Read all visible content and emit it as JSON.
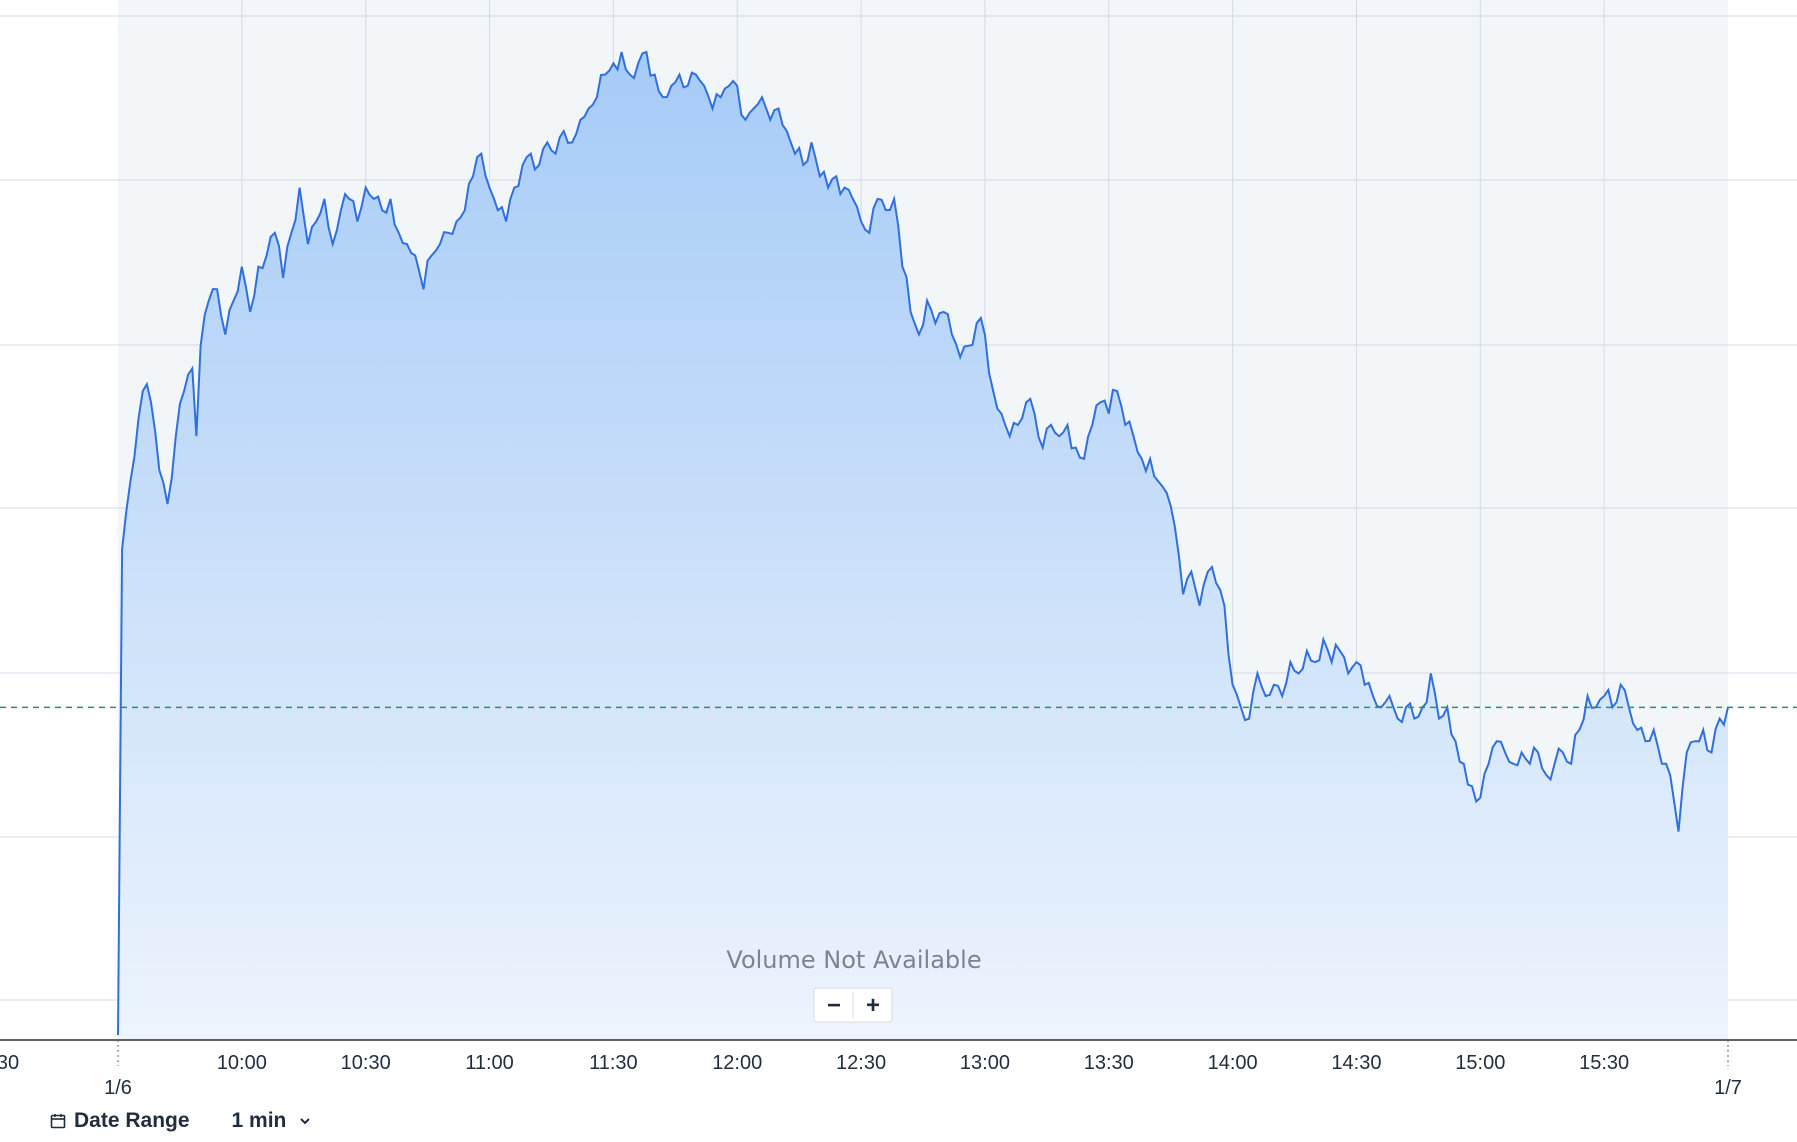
{
  "chart_data": {
    "type": "area",
    "overlay_text": "Volume Not Available",
    "zoom_out_label": "−",
    "zoom_in_label": "+",
    "x_tick_labels": [
      "30",
      "10:00",
      "10:30",
      "11:00",
      "11:30",
      "12:00",
      "12:30",
      "13:00",
      "13:30",
      "14:00",
      "14:30",
      "15:00",
      "15:30"
    ],
    "date_labels": [
      "1/6",
      "1/7"
    ],
    "grid": true,
    "reference_line": "dashed",
    "colors": {
      "line": "#2f6fde",
      "fill_top": "#a6cbf7",
      "fill_bottom": "#edf4fd",
      "reference": "#2e8b7a",
      "grid": "#d4dbe4"
    },
    "anchors": [
      [
        "09:30",
        10
      ],
      [
        "09:31",
        53
      ],
      [
        "09:33",
        59
      ],
      [
        "09:36",
        67
      ],
      [
        "09:38",
        66
      ],
      [
        "09:40",
        60
      ],
      [
        "09:42",
        57
      ],
      [
        "09:44",
        63
      ],
      [
        "09:46",
        67
      ],
      [
        "09:48",
        69
      ],
      [
        "09:49",
        63
      ],
      [
        "09:50",
        71
      ],
      [
        "09:52",
        75
      ],
      [
        "09:54",
        76
      ],
      [
        "09:56",
        72
      ],
      [
        "09:58",
        75
      ],
      [
        "10:00",
        78
      ],
      [
        "10:02",
        74
      ],
      [
        "10:04",
        78
      ],
      [
        "10:06",
        79
      ],
      [
        "10:08",
        81
      ],
      [
        "10:10",
        77
      ],
      [
        "10:12",
        81
      ],
      [
        "10:14",
        85
      ],
      [
        "10:16",
        80
      ],
      [
        "10:18",
        82
      ],
      [
        "10:20",
        84
      ],
      [
        "10:22",
        80
      ],
      [
        "10:24",
        83
      ],
      [
        "10:26",
        84
      ],
      [
        "10:28",
        82
      ],
      [
        "10:30",
        85
      ],
      [
        "10:32",
        84
      ],
      [
        "10:34",
        83
      ],
      [
        "10:36",
        84
      ],
      [
        "10:38",
        81
      ],
      [
        "10:40",
        80
      ],
      [
        "10:42",
        79
      ],
      [
        "10:44",
        76
      ],
      [
        "10:46",
        79
      ],
      [
        "10:48",
        80
      ],
      [
        "10:50",
        81
      ],
      [
        "10:52",
        82
      ],
      [
        "10:54",
        83
      ],
      [
        "10:56",
        86
      ],
      [
        "10:58",
        88
      ],
      [
        "11:00",
        85
      ],
      [
        "11:02",
        83
      ],
      [
        "11:04",
        82
      ],
      [
        "11:06",
        85
      ],
      [
        "11:08",
        87
      ],
      [
        "11:10",
        88
      ],
      [
        "11:12",
        87
      ],
      [
        "11:14",
        89
      ],
      [
        "11:16",
        88
      ],
      [
        "11:18",
        90
      ],
      [
        "11:20",
        89
      ],
      [
        "11:22",
        91
      ],
      [
        "11:24",
        92
      ],
      [
        "11:26",
        93
      ],
      [
        "11:28",
        95
      ],
      [
        "11:30",
        96
      ],
      [
        "11:32",
        97
      ],
      [
        "11:34",
        95
      ],
      [
        "11:36",
        96
      ],
      [
        "11:38",
        97
      ],
      [
        "11:40",
        95
      ],
      [
        "11:42",
        93
      ],
      [
        "11:44",
        94
      ],
      [
        "11:46",
        95
      ],
      [
        "11:48",
        94
      ],
      [
        "11:50",
        95
      ],
      [
        "11:52",
        94
      ],
      [
        "11:54",
        92
      ],
      [
        "11:56",
        93
      ],
      [
        "11:58",
        94
      ],
      [
        "12:00",
        94
      ],
      [
        "12:02",
        91
      ],
      [
        "12:04",
        92
      ],
      [
        "12:06",
        93
      ],
      [
        "12:08",
        91
      ],
      [
        "12:10",
        92
      ],
      [
        "12:12",
        90
      ],
      [
        "12:14",
        88
      ],
      [
        "12:16",
        87
      ],
      [
        "12:18",
        89
      ],
      [
        "12:20",
        86
      ],
      [
        "12:22",
        85
      ],
      [
        "12:24",
        86
      ],
      [
        "12:26",
        85
      ],
      [
        "12:28",
        84
      ],
      [
        "12:30",
        82
      ],
      [
        "12:32",
        81
      ],
      [
        "12:34",
        84
      ],
      [
        "12:36",
        83
      ],
      [
        "12:38",
        84
      ],
      [
        "12:40",
        78
      ],
      [
        "12:42",
        74
      ],
      [
        "12:44",
        72
      ],
      [
        "12:46",
        75
      ],
      [
        "12:48",
        73
      ],
      [
        "12:50",
        74
      ],
      [
        "12:52",
        72
      ],
      [
        "12:54",
        70
      ],
      [
        "12:56",
        71
      ],
      [
        "12:58",
        73
      ],
      [
        "13:00",
        72
      ],
      [
        "13:02",
        67
      ],
      [
        "13:04",
        65
      ],
      [
        "13:06",
        63
      ],
      [
        "13:08",
        64
      ],
      [
        "13:10",
        66
      ],
      [
        "13:12",
        65
      ],
      [
        "13:14",
        62
      ],
      [
        "13:16",
        64
      ],
      [
        "13:18",
        63
      ],
      [
        "13:20",
        64
      ],
      [
        "13:22",
        62
      ],
      [
        "13:24",
        61
      ],
      [
        "13:26",
        64
      ],
      [
        "13:28",
        66
      ],
      [
        "13:30",
        65
      ],
      [
        "13:32",
        67
      ],
      [
        "13:34",
        64
      ],
      [
        "13:36",
        63
      ],
      [
        "13:38",
        61
      ],
      [
        "13:40",
        61
      ],
      [
        "13:42",
        59
      ],
      [
        "13:44",
        58
      ],
      [
        "13:46",
        55
      ],
      [
        "13:48",
        49
      ],
      [
        "13:50",
        51
      ],
      [
        "13:52",
        48
      ],
      [
        "13:54",
        51
      ],
      [
        "13:56",
        50
      ],
      [
        "13:58",
        48
      ],
      [
        "14:00",
        41
      ],
      [
        "14:02",
        39
      ],
      [
        "14:04",
        38
      ],
      [
        "14:06",
        42
      ],
      [
        "14:08",
        40
      ],
      [
        "14:10",
        41
      ],
      [
        "14:12",
        40
      ],
      [
        "14:14",
        43
      ],
      [
        "14:16",
        42
      ],
      [
        "14:18",
        44
      ],
      [
        "14:20",
        43
      ],
      [
        "14:22",
        45
      ],
      [
        "14:24",
        43
      ],
      [
        "14:26",
        44
      ],
      [
        "14:28",
        42
      ],
      [
        "14:30",
        43
      ],
      [
        "14:32",
        41
      ],
      [
        "14:34",
        40
      ],
      [
        "14:36",
        39
      ],
      [
        "14:38",
        40
      ],
      [
        "14:40",
        38
      ],
      [
        "14:42",
        39
      ],
      [
        "14:44",
        38
      ],
      [
        "14:46",
        39
      ],
      [
        "14:48",
        42
      ],
      [
        "14:50",
        38
      ],
      [
        "14:52",
        39
      ],
      [
        "14:54",
        36
      ],
      [
        "14:56",
        34
      ],
      [
        "14:58",
        32
      ],
      [
        "15:00",
        31
      ],
      [
        "15:02",
        34
      ],
      [
        "15:04",
        36
      ],
      [
        "15:06",
        35
      ],
      [
        "15:08",
        34
      ],
      [
        "15:10",
        35
      ],
      [
        "15:12",
        34
      ],
      [
        "15:14",
        35
      ],
      [
        "15:16",
        33
      ],
      [
        "15:18",
        34
      ],
      [
        "15:20",
        35
      ],
      [
        "15:22",
        34
      ],
      [
        "15:24",
        37
      ],
      [
        "15:26",
        40
      ],
      [
        "15:28",
        39
      ],
      [
        "15:30",
        40
      ],
      [
        "15:32",
        39
      ],
      [
        "15:34",
        41
      ],
      [
        "15:36",
        39
      ],
      [
        "15:38",
        37
      ],
      [
        "15:40",
        36
      ],
      [
        "15:42",
        37
      ],
      [
        "15:44",
        34
      ],
      [
        "15:46",
        33
      ],
      [
        "15:48",
        28
      ],
      [
        "15:50",
        35
      ],
      [
        "15:52",
        36
      ],
      [
        "15:54",
        37
      ],
      [
        "15:56",
        35
      ],
      [
        "15:58",
        38
      ],
      [
        "16:00",
        39
      ]
    ],
    "reference_value": 39,
    "x_range": [
      "09:30",
      "16:00"
    ],
    "y_range": [
      10,
      100
    ]
  },
  "toolbar": {
    "calendar_icon": "calendar-icon",
    "date_range_label": "Date Range",
    "interval_label": "1 min",
    "interval_icon": "chevron-down-icon"
  }
}
